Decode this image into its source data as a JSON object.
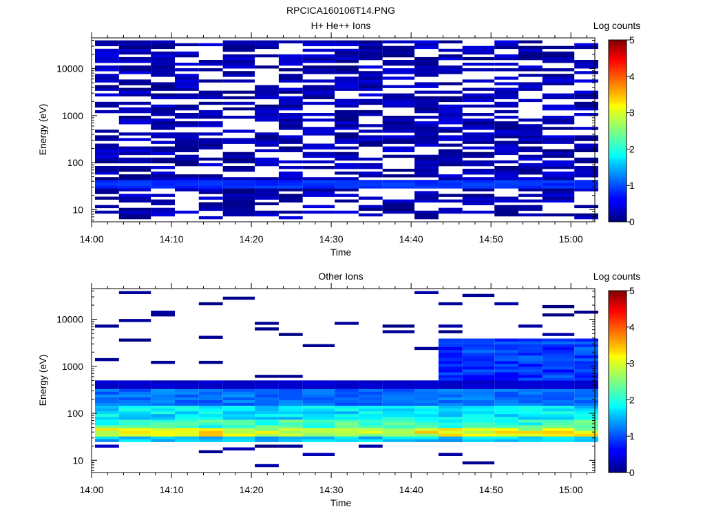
{
  "figure_title": "RPCICA160106T14.PNG",
  "chart_data": [
    {
      "type": "heatmap",
      "title": "H+ He++ Ions",
      "xlabel": "Time",
      "ylabel": "Energy (eV)",
      "x_ticks": [
        "14:00",
        "14:10",
        "14:20",
        "14:30",
        "14:40",
        "14:50",
        "15:00"
      ],
      "xlim": [
        "14:00",
        "15:03"
      ],
      "y_scale": "log",
      "ylim": [
        5.5,
        45000
      ],
      "y_ticks": [
        "10",
        "100",
        "1000",
        "10000"
      ],
      "colorbar": {
        "label": "Log counts",
        "ticks": [
          "0",
          "1",
          "2",
          "3",
          "4",
          "5"
        ],
        "range": [
          0,
          5
        ],
        "colormap": "jet"
      },
      "time_bins": [
        "14:00",
        "14:03",
        "14:07",
        "14:10",
        "14:13",
        "14:16",
        "14:20",
        "14:23",
        "14:26",
        "14:30",
        "14:33",
        "14:36",
        "14:40",
        "14:43",
        "14:46",
        "14:50",
        "14:53",
        "14:56",
        "15:00"
      ],
      "typical_range_log_counts": [
        0.0,
        0.5
      ],
      "peak_band": {
        "energy_eV": [
          30,
          45
        ],
        "log_counts": 0.9
      }
    },
    {
      "type": "heatmap",
      "title": "Other Ions",
      "xlabel": "Time",
      "ylabel": "Energy (eV)",
      "x_ticks": [
        "14:00",
        "14:10",
        "14:20",
        "14:30",
        "14:40",
        "14:50",
        "15:00"
      ],
      "xlim": [
        "14:00",
        "15:03"
      ],
      "y_scale": "log",
      "ylim": [
        5.5,
        45000
      ],
      "y_ticks": [
        "10",
        "100",
        "1000",
        "10000"
      ],
      "colorbar": {
        "label": "Log counts",
        "ticks": [
          "0",
          "1",
          "2",
          "3",
          "4",
          "5"
        ],
        "range": [
          0,
          5
        ],
        "colormap": "jet"
      },
      "time_bins": [
        "14:00",
        "14:03",
        "14:07",
        "14:10",
        "14:13",
        "14:16",
        "14:20",
        "14:23",
        "14:26",
        "14:30",
        "14:33",
        "14:36",
        "14:40",
        "14:43",
        "14:46",
        "14:50",
        "14:53",
        "14:56",
        "15:00"
      ],
      "profile_log_counts_by_energy": [
        {
          "energy_eV": 500,
          "log_counts": 0.4
        },
        {
          "energy_eV": 200,
          "log_counts": 1.2
        },
        {
          "energy_eV": 100,
          "log_counts": 1.8
        },
        {
          "energy_eV": 60,
          "log_counts": 2.2
        },
        {
          "energy_eV": 40,
          "log_counts": 3.0
        },
        {
          "energy_eV": 30,
          "log_counts": 1.6
        }
      ],
      "enhanced_interval": {
        "from": "14:43",
        "to": "15:00",
        "energy_eV": [
          500,
          4000
        ],
        "log_counts": 1.0
      }
    }
  ]
}
